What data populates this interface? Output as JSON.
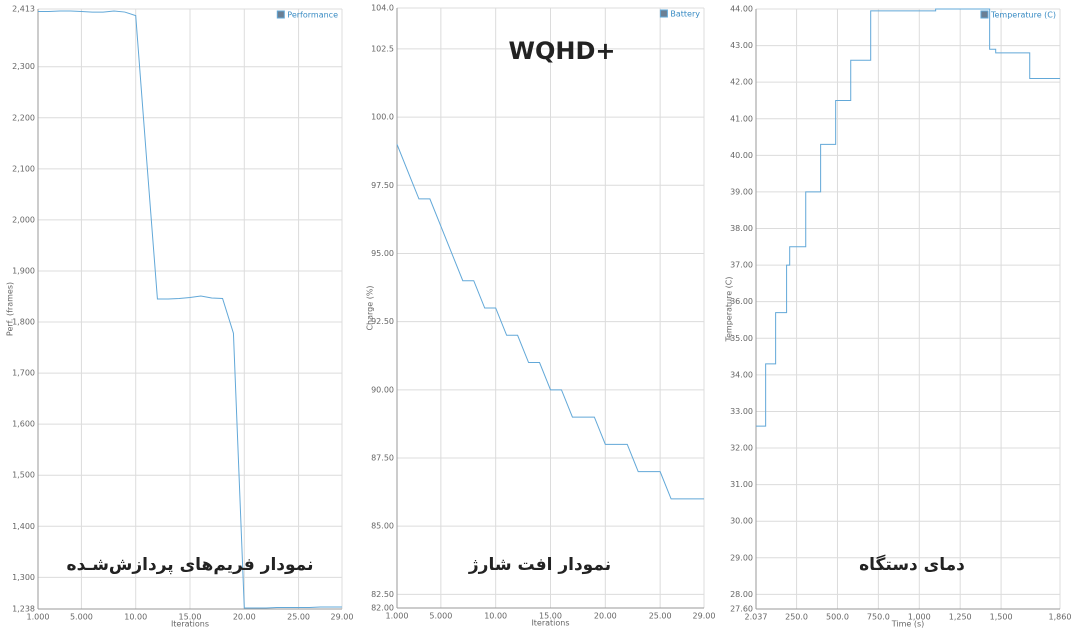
{
  "chart_data": [
    {
      "type": "line",
      "x_label": "Iterations",
      "y_label": "Perf. (frames)",
      "annotations": [
        "نمودار فریم‌های پردازش‌شـده"
      ],
      "x": [
        1,
        2,
        3,
        4,
        5,
        6,
        7,
        8,
        9,
        10,
        11,
        12,
        13,
        14,
        15,
        16,
        17,
        18,
        19,
        20,
        21,
        22,
        23,
        24,
        25,
        26,
        27,
        28,
        29
      ],
      "series": [
        {
          "name": "Performance",
          "color": "#62a8d8",
          "values": [
            2408,
            2408,
            2409,
            2409,
            2408,
            2407,
            2407,
            2409,
            2407,
            2400,
            2120,
            1845,
            1845,
            1846,
            1848,
            1851,
            1847,
            1846,
            1778,
            1240,
            1240,
            1240,
            1241,
            1241,
            1241,
            1241,
            1242,
            1242,
            1242
          ]
        }
      ],
      "xlim": [
        1,
        29
      ],
      "xticks": [
        {
          "value": 1,
          "label": "1.000"
        },
        {
          "value": 5,
          "label": "5.000"
        },
        {
          "value": 10,
          "label": "10.00"
        },
        {
          "value": 15,
          "label": "15.00"
        },
        {
          "value": 20,
          "label": "20.00"
        },
        {
          "value": 25,
          "label": "25.00"
        },
        {
          "value": 29,
          "label": "29.00"
        }
      ],
      "ylim": [
        1238,
        2413
      ],
      "yticks": [
        {
          "value": 1238,
          "label": "1,238"
        },
        {
          "value": 1300,
          "label": "1,300"
        },
        {
          "value": 1400,
          "label": "1,400"
        },
        {
          "value": 1500,
          "label": "1,500"
        },
        {
          "value": 1600,
          "label": "1,600"
        },
        {
          "value": 1700,
          "label": "1,700"
        },
        {
          "value": 1800,
          "label": "1,800"
        },
        {
          "value": 1900,
          "label": "1,900"
        },
        {
          "value": 2000,
          "label": "2,000"
        },
        {
          "value": 2100,
          "label": "2,100"
        },
        {
          "value": 2200,
          "label": "2,200"
        },
        {
          "value": 2300,
          "label": "2,300"
        },
        {
          "value": 2413,
          "label": "2,413"
        }
      ],
      "grid": true,
      "legend": "top-right"
    },
    {
      "type": "line",
      "x_label": "Iterations",
      "y_label": "Charge (%)",
      "annotations": [
        "WQHD+",
        "نمودار افت شارژ"
      ],
      "x": [
        1,
        2,
        3,
        4,
        5,
        6,
        7,
        8,
        9,
        10,
        11,
        12,
        13,
        14,
        15,
        16,
        17,
        18,
        19,
        20,
        21,
        22,
        23,
        24,
        25,
        26,
        27,
        28,
        29
      ],
      "series": [
        {
          "name": "Battery",
          "color": "#62a8d8",
          "values": [
            99,
            98,
            97,
            97,
            96,
            95,
            94,
            94,
            93,
            93,
            92,
            92,
            91,
            91,
            90,
            90,
            89,
            89,
            89,
            88,
            88,
            88,
            87,
            87,
            87,
            86,
            86,
            86,
            86
          ]
        }
      ],
      "xlim": [
        1,
        29
      ],
      "xticks": [
        {
          "value": 1,
          "label": "1.000"
        },
        {
          "value": 5,
          "label": "5.000"
        },
        {
          "value": 10,
          "label": "10.00"
        },
        {
          "value": 15,
          "label": "15.00"
        },
        {
          "value": 20,
          "label": "20.00"
        },
        {
          "value": 25,
          "label": "25.00"
        },
        {
          "value": 29,
          "label": "29.00"
        }
      ],
      "ylim": [
        82,
        104
      ],
      "yticks": [
        {
          "value": 82,
          "label": "82.00"
        },
        {
          "value": 82.5,
          "label": "82.50"
        },
        {
          "value": 85,
          "label": "85.00"
        },
        {
          "value": 87.5,
          "label": "87.50"
        },
        {
          "value": 90,
          "label": "90.00"
        },
        {
          "value": 92.5,
          "label": "92.50"
        },
        {
          "value": 95,
          "label": "95.00"
        },
        {
          "value": 97.5,
          "label": "97.50"
        },
        {
          "value": 100,
          "label": "100.0"
        },
        102.5,
        {
          "value": 104,
          "label": "104.0"
        }
      ],
      "grid": true,
      "legend": "top-right"
    },
    {
      "type": "line",
      "x_label": "Time (s)",
      "y_label": "Temperature (C)",
      "annotations": [
        "دمای  دستگاه"
      ],
      "x": [
        2.037,
        61,
        61,
        122,
        122,
        189,
        189,
        208,
        208,
        306,
        306,
        397,
        397,
        489,
        489,
        581,
        581,
        703,
        703,
        1100,
        1100,
        1430,
        1430,
        1467,
        1467,
        1675,
        1675,
        1860
      ],
      "series": [
        {
          "name": "Temperature (C)",
          "color": "#62a8d8",
          "values": [
            32.6,
            32.6,
            34.3,
            34.3,
            35.7,
            35.7,
            37.0,
            37.0,
            37.5,
            37.5,
            39.0,
            39.0,
            40.3,
            40.3,
            41.5,
            41.5,
            42.6,
            42.6,
            43.95,
            43.95,
            44.0,
            44.0,
            42.9,
            42.9,
            42.8,
            42.8,
            42.1,
            42.1
          ]
        }
      ],
      "xlim": [
        2.037,
        1860
      ],
      "xticks": [
        2.037,
        {
          "value": 250,
          "label": "250.0"
        },
        {
          "value": 500,
          "label": "500.0"
        },
        {
          "value": 750,
          "label": "750.0"
        },
        {
          "value": 1000,
          "label": "1,000"
        },
        {
          "value": 1250,
          "label": "1,250"
        },
        {
          "value": 1500,
          "label": "1,500"
        },
        {
          "value": 1860,
          "label": "1,860"
        }
      ],
      "ylim": [
        27.6,
        44
      ],
      "yticks": [
        {
          "value": 27.6,
          "label": "27.60"
        },
        {
          "value": 28,
          "label": "28.00"
        },
        {
          "value": 29,
          "label": "29.00"
        },
        {
          "value": 30,
          "label": "30.00"
        },
        {
          "value": 31,
          "label": "31.00"
        },
        {
          "value": 32,
          "label": "32.00"
        },
        {
          "value": 33,
          "label": "33.00"
        },
        {
          "value": 34,
          "label": "34.00"
        },
        {
          "value": 35,
          "label": "35.00"
        },
        {
          "value": 36,
          "label": "36.00"
        },
        {
          "value": 37,
          "label": "37.00"
        },
        {
          "value": 38,
          "label": "38.00"
        },
        {
          "value": 39,
          "label": "39.00"
        },
        {
          "value": 40,
          "label": "40.00"
        },
        {
          "value": 41,
          "label": "41.00"
        },
        {
          "value": 42,
          "label": "42.00"
        },
        {
          "value": 43,
          "label": "43.00"
        },
        {
          "value": 44,
          "label": "44.00"
        }
      ],
      "grid": true,
      "legend": "top-right"
    }
  ]
}
